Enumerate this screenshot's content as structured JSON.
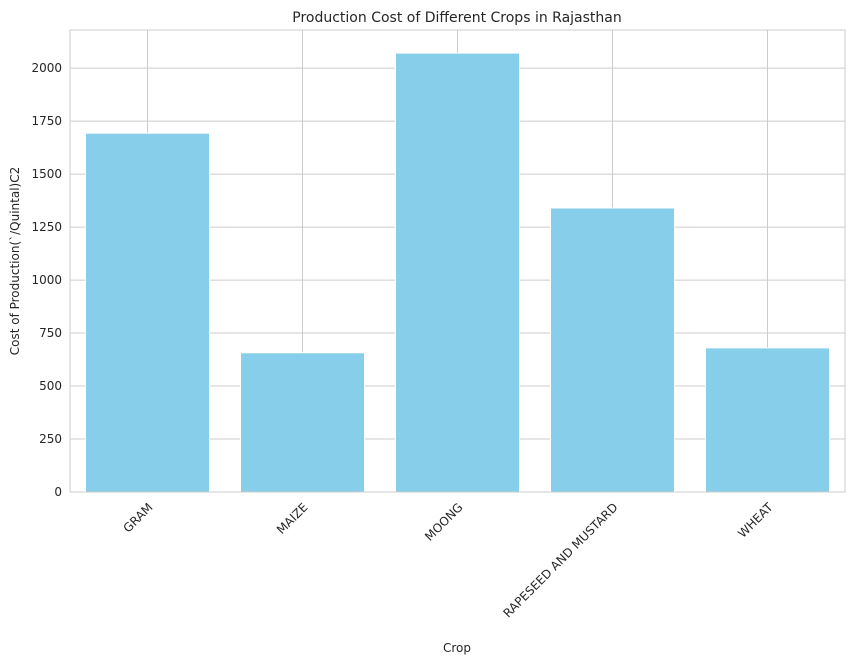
{
  "chart_data": {
    "type": "bar",
    "title": "Production Cost of Different Crops in Rajasthan",
    "xlabel": "Crop",
    "ylabel": "Cost of Production(`/Quintal)C2",
    "categories": [
      "GRAM",
      "MAIZE",
      "MOONG",
      "RAPESEED AND MUSTARD",
      "WHEAT"
    ],
    "values": [
      1693,
      657,
      2071,
      1340,
      680
    ],
    "ylim": [
      0,
      2180
    ],
    "yticks": [
      0,
      250,
      500,
      750,
      1000,
      1250,
      1500,
      1750,
      2000
    ],
    "grid": true,
    "bar_color": "#87ceeb",
    "grid_color": "#cccccc"
  }
}
